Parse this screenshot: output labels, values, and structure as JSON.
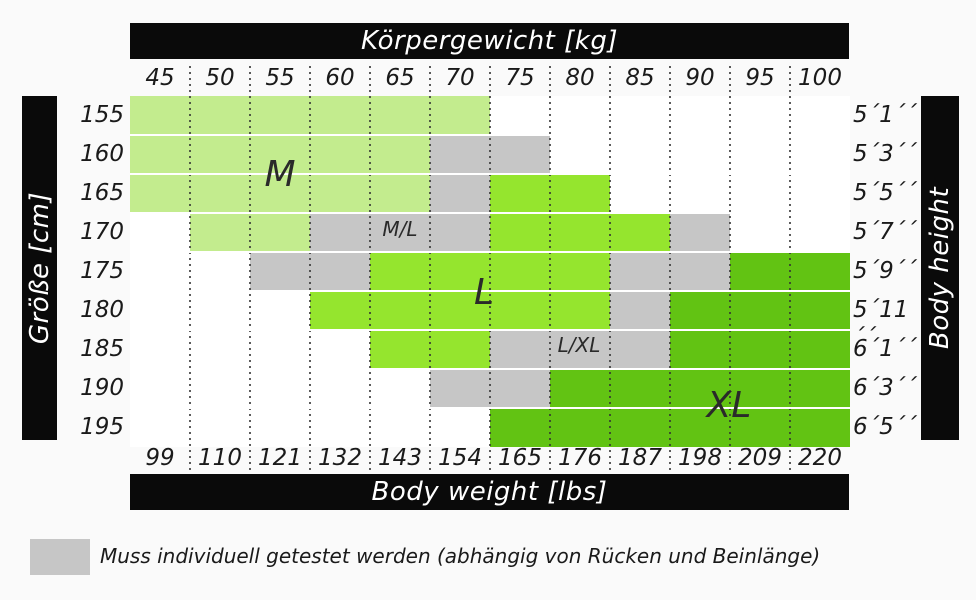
{
  "chart_data": {
    "type": "heatmap",
    "title_top": "Körpergewicht [kg]",
    "title_bottom": "Body weight [lbs]",
    "ylabel_left": "Größe [cm]",
    "ylabel_right": "Body height",
    "x_kg": [
      "45",
      "50",
      "55",
      "60",
      "65",
      "70",
      "75",
      "80",
      "85",
      "90",
      "95",
      "100"
    ],
    "x_lbs": [
      "99",
      "110",
      "121",
      "132",
      "143",
      "154",
      "165",
      "176",
      "187",
      "198",
      "209",
      "220"
    ],
    "y_cm": [
      "155",
      "160",
      "165",
      "170",
      "175",
      "180",
      "185",
      "190",
      "195"
    ],
    "y_ft": [
      "5´1´´",
      "5´3´´",
      "5´5´´",
      "5´7´´",
      "5´9´´",
      "5´11´´",
      "6´1´´",
      "6´3´´",
      "6´5´´"
    ],
    "sizes": [
      "M",
      "M/L",
      "L",
      "L/XL",
      "XL"
    ],
    "cells": [
      [
        "M",
        "M",
        "M",
        "M",
        "M",
        "M",
        "",
        "",
        "",
        "",
        "",
        ""
      ],
      [
        "M",
        "M",
        "M",
        "M",
        "M",
        "M/L",
        "M/L",
        "",
        "",
        "",
        "",
        ""
      ],
      [
        "M",
        "M",
        "M",
        "M",
        "M",
        "M/L",
        "L",
        "L",
        "",
        "",
        "",
        ""
      ],
      [
        "",
        "M",
        "M",
        "M/L",
        "M/L",
        "M/L",
        "L",
        "L",
        "L",
        "L/XL",
        "",
        ""
      ],
      [
        "",
        "",
        "M/L",
        "M/L",
        "L",
        "L",
        "L",
        "L",
        "L/XL",
        "L/XL",
        "XL",
        "XL"
      ],
      [
        "",
        "",
        "",
        "L",
        "L",
        "L",
        "L",
        "L",
        "L/XL",
        "XL",
        "XL",
        "XL"
      ],
      [
        "",
        "",
        "",
        "",
        "L",
        "L",
        "L/XL",
        "L/XL",
        "L/XL",
        "XL",
        "XL",
        "XL"
      ],
      [
        "",
        "",
        "",
        "",
        "",
        "L/XL",
        "L/XL",
        "XL",
        "XL",
        "XL",
        "XL",
        "XL"
      ],
      [
        "",
        "",
        "",
        "",
        "",
        "",
        "XL",
        "XL",
        "XL",
        "XL",
        "XL",
        "XL"
      ]
    ],
    "grid": "dotted-vertical",
    "legend_placement": "bottom-left"
  },
  "legend": {
    "text": "Muss individuell getestet werden (abhängig von Rücken und Beinlänge)"
  },
  "colors": {
    "M": "#c3ec8e",
    "L": "#95e52e",
    "XL": "#62c313",
    "mixed": "#c6c6c6",
    "empty": "#ffffff",
    "banner": "#0a0a0a"
  }
}
